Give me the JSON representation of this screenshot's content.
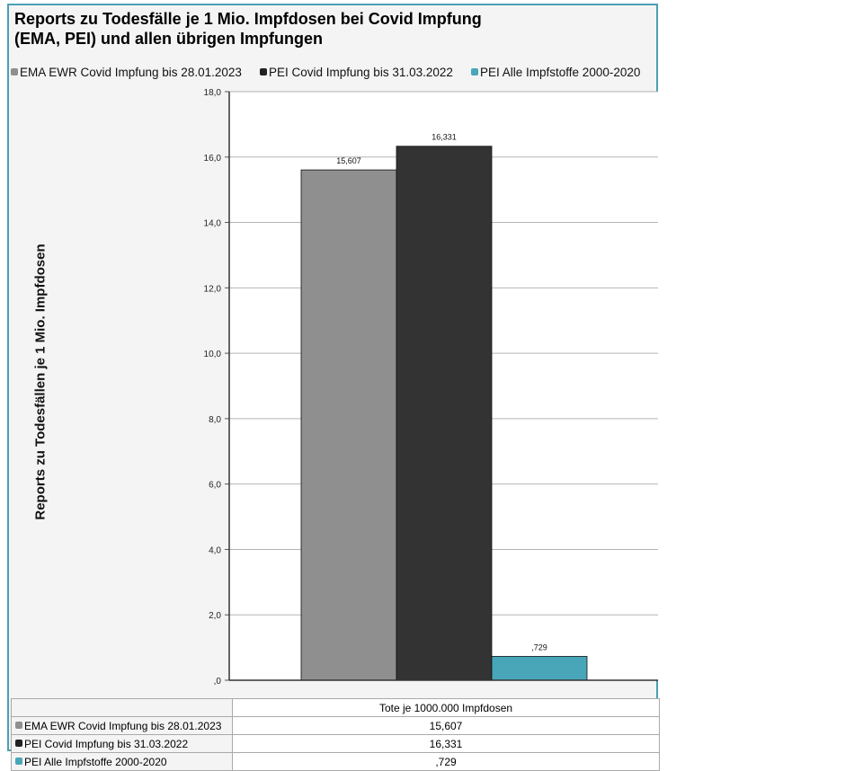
{
  "chart_data": {
    "type": "bar",
    "title_lines": [
      "Reports zu Todesfälle je 1 Mio. Impfdosen bei Covid Impfung",
      "(EMA, PEI) und allen übrigen Impfungen"
    ],
    "ylabel": "Reports zu Todesfällen je 1 Mio. Impfdosen",
    "xlabel": "Tote je 1000.000 Impfdosen",
    "ylim": [
      0,
      18
    ],
    "yticks": [
      0,
      2,
      4,
      6,
      8,
      10,
      12,
      14,
      16,
      18
    ],
    "ytick_labels": [
      ",0",
      "2,0",
      "4,0",
      "6,0",
      "8,0",
      "10,0",
      "12,0",
      "14,0",
      "16,0",
      "18,0"
    ],
    "grid": true,
    "legend_position": "top",
    "series": [
      {
        "name": "EMA EWR Covid Impfung bis 28.01.2023",
        "value": 15.607,
        "label": "15,607",
        "color": "#8f8f8f"
      },
      {
        "name": "PEI Covid Impfung bis 31.03.2022",
        "value": 16.331,
        "label": "16,331",
        "color": "#333333"
      },
      {
        "name": "PEI Alle Impfstoffe 2000-2020",
        "value": 0.729,
        "label": ",729",
        "color": "#48a6b8"
      }
    ]
  }
}
